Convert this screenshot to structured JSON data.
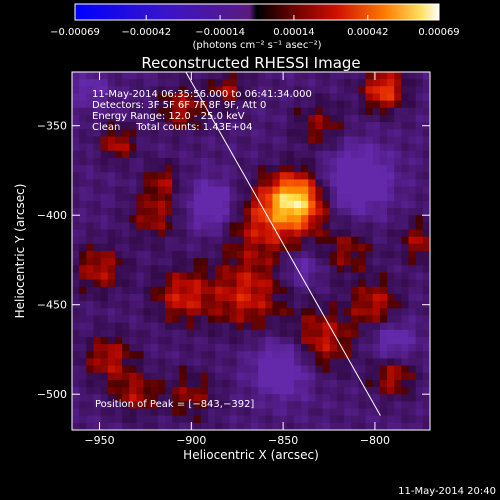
{
  "chart_data": {
    "type": "heatmap",
    "title": "Reconstructed RHESSI Image",
    "xlabel": "Heliocentric X (arcsec)",
    "ylabel": "Heliocentric Y (arcsec)",
    "xlim": [
      -965,
      -770
    ],
    "ylim": [
      -520,
      -320
    ],
    "x_ticks": [
      {
        "value": -950,
        "label": "−950"
      },
      {
        "value": -900,
        "label": "−900"
      },
      {
        "value": -850,
        "label": "−850"
      },
      {
        "value": -800,
        "label": "−800"
      }
    ],
    "y_ticks": [
      {
        "value": -350,
        "label": "−350"
      },
      {
        "value": -400,
        "label": "−400"
      },
      {
        "value": -450,
        "label": "−450"
      },
      {
        "value": -500,
        "label": "−500"
      }
    ],
    "colorbar": {
      "range": [
        -0.00069,
        0.00069
      ],
      "ticks": [
        {
          "value": -0.00069,
          "label": "−0.00069"
        },
        {
          "value": -0.00042,
          "label": "−0.00042"
        },
        {
          "value": -0.00014,
          "label": "−0.00014"
        },
        {
          "value": 0.00014,
          "label": "0.00014"
        },
        {
          "value": 0.00042,
          "label": "0.00042"
        },
        {
          "value": 0.00069,
          "label": "0.00069"
        }
      ],
      "unit_label": "(photons cm⁻² s⁻¹ asec⁻²)"
    },
    "annotations": [
      "11-May-2014 06:35:56.000 to 06:41:34.000",
      "Detectors: 3F 5F 6F 7F 8F 9F, Att 0",
      "Energy Range: 12.0 - 25.0 keV",
      "Clean     Total counts: 1.43E+04"
    ],
    "peak_label": "Position of Peak = [−843,−392]",
    "peak": {
      "x": -843,
      "y": -392
    },
    "limb_line": [
      [
        -903,
        -320
      ],
      [
        -797,
        -512
      ]
    ],
    "grid": false
  },
  "footer_timestamp": "11-May-2014 20:40"
}
